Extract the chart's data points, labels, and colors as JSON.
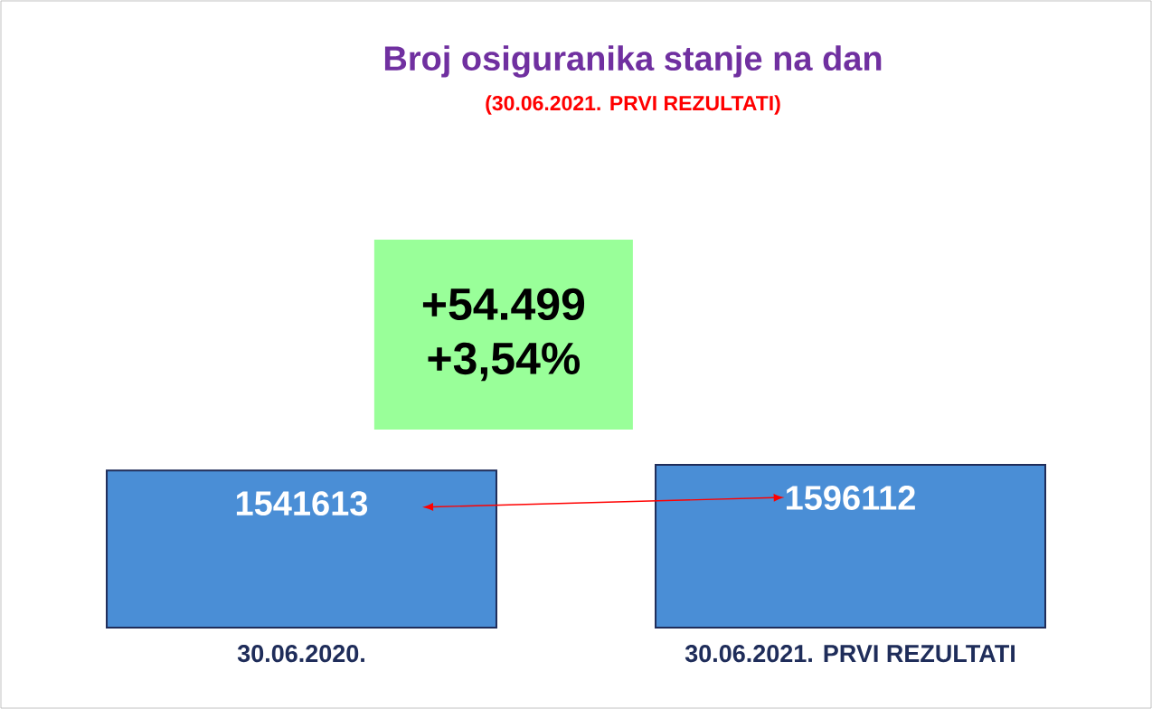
{
  "chart_data": {
    "type": "bar",
    "title": "Broj osiguranika stanje na dan",
    "subtitle": "(30.06.2021. PRVI REZULTATI)",
    "categories": [
      "30.06.2020.",
      "30.06.2021. PRVI REZULTATI"
    ],
    "values": [
      1541613,
      1596112
    ],
    "color": "#4a8ed6",
    "tick_labels": "x",
    "data_labels": true,
    "grid": false,
    "annotations": [
      "+54.499",
      "+3,54%"
    ]
  }
}
